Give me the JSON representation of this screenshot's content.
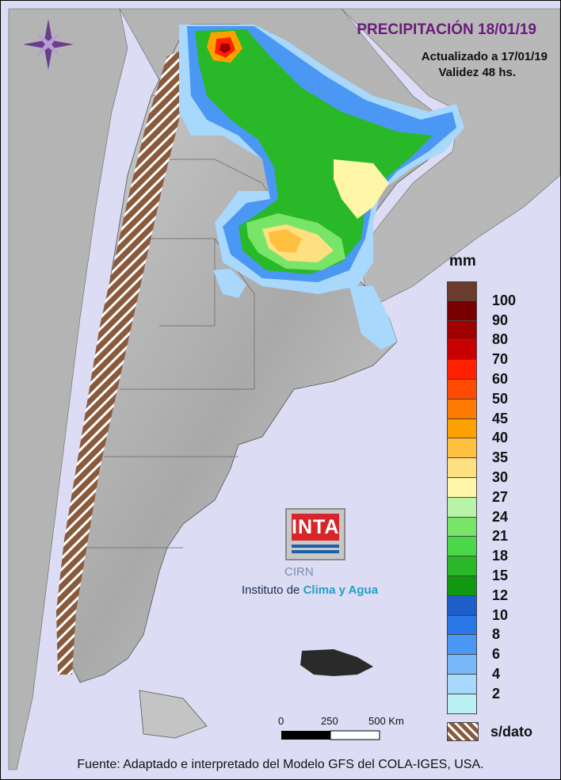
{
  "header": {
    "title": "PRECIPITACIÓN 18/01/19",
    "updated": "Actualizado a 17/01/19",
    "validity": "Validez 48 hs."
  },
  "legend": {
    "unit": "mm",
    "classes": [
      {
        "label": "100",
        "color": "#6b3b2e"
      },
      {
        "label": "90",
        "color": "#7a0000"
      },
      {
        "label": "80",
        "color": "#a00000"
      },
      {
        "label": "70",
        "color": "#c80000"
      },
      {
        "label": "60",
        "color": "#ff2000"
      },
      {
        "label": "50",
        "color": "#ff4a00"
      },
      {
        "label": "45",
        "color": "#ff7a00"
      },
      {
        "label": "40",
        "color": "#ffa200"
      },
      {
        "label": "35",
        "color": "#ffc040"
      },
      {
        "label": "30",
        "color": "#ffe080"
      },
      {
        "label": "27",
        "color": "#fff6a8"
      },
      {
        "label": "24",
        "color": "#b8f4a8"
      },
      {
        "label": "21",
        "color": "#78e468"
      },
      {
        "label": "18",
        "color": "#48d848"
      },
      {
        "label": "15",
        "color": "#28b828"
      },
      {
        "label": "12",
        "color": "#109810"
      },
      {
        "label": "10",
        "color": "#1e5ec8"
      },
      {
        "label": "8",
        "color": "#2a78e8"
      },
      {
        "label": "6",
        "color": "#4a98f4"
      },
      {
        "label": "4",
        "color": "#78b8f8"
      },
      {
        "label": "2",
        "color": "#a8d8fc"
      }
    ],
    "bottom_swatch_color": "#b8f0f4",
    "no_data_label": "s/dato"
  },
  "scale_bar": {
    "labels": [
      "0",
      "250",
      "500 Km"
    ]
  },
  "logo": {
    "brand": "INTA",
    "center": "CIRN",
    "institute_prefix": "Instituto de ",
    "institute_highlight": "Clima y Agua"
  },
  "footer": {
    "source": "Fuente: Adaptado e interpretado del Modelo GFS del COLA-IGES, USA."
  },
  "icons": {
    "compass": "compass-rose-icon"
  }
}
